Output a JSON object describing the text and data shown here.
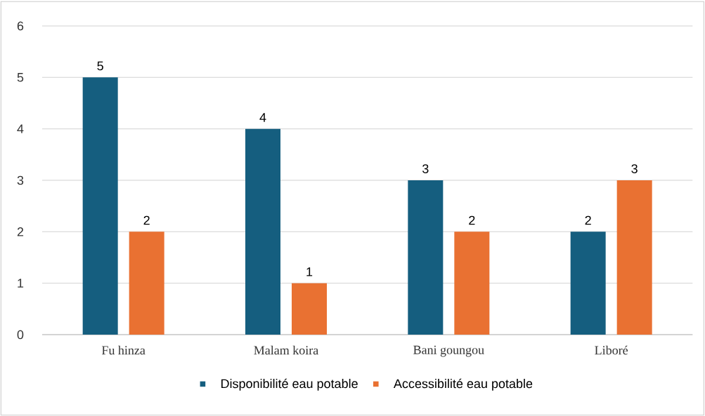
{
  "chart_data": {
    "type": "bar",
    "categories": [
      "Fu hinza",
      "Malam koira",
      "Bani goungou",
      "Liboré"
    ],
    "series": [
      {
        "name": "Disponibilité eau potable",
        "color": "#155e7f",
        "values": [
          5,
          4,
          3,
          2
        ]
      },
      {
        "name": "Accessibilité eau potable",
        "color": "#e97132",
        "values": [
          2,
          1,
          2,
          3
        ]
      }
    ],
    "ylim": [
      0,
      6
    ],
    "yticks": [
      0,
      1,
      2,
      3,
      4,
      5,
      6
    ],
    "grid": "y",
    "legend": "bottom",
    "data_labels": true
  }
}
